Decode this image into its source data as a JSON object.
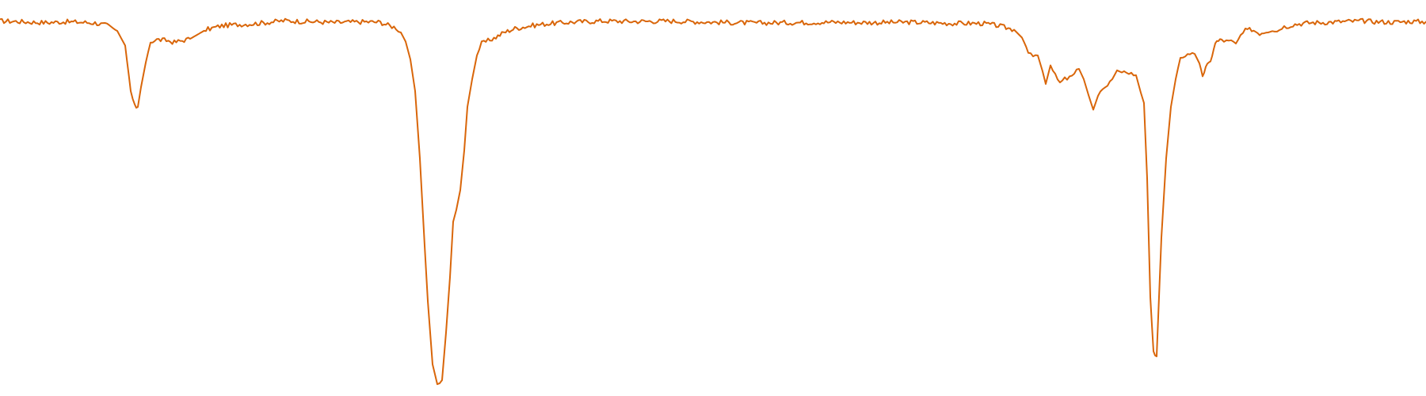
{
  "chart_data": {
    "type": "line",
    "title": "",
    "xlabel": "",
    "ylabel": "",
    "axes_visible": false,
    "grid": false,
    "legend": "none",
    "xlim": [
      0,
      1800
    ],
    "ylim": [
      0,
      1.0
    ],
    "series": [
      {
        "color": "#d9660a",
        "x": [
          0,
          20,
          40,
          60,
          80,
          100,
          120,
          135,
          148,
          158,
          165,
          170,
          174,
          178,
          184,
          190,
          198,
          210,
          220,
          240,
          260,
          280,
          300,
          320,
          340,
          360,
          380,
          400,
          420,
          440,
          460,
          480,
          492,
          500,
          506,
          512,
          518,
          524,
          530,
          536,
          540,
          546,
          552,
          558,
          563,
          568,
          572,
          576,
          581,
          586,
          590,
          596,
          602,
          608,
          616,
          626,
          636,
          650,
          670,
          690,
          720,
          760,
          800,
          850,
          900,
          950,
          1000,
          1050,
          1100,
          1150,
          1200,
          1240,
          1260,
          1280,
          1290,
          1298,
          1304,
          1310,
          1316,
          1320,
          1326,
          1332,
          1338,
          1344,
          1350,
          1356,
          1362,
          1368,
          1374,
          1380,
          1386,
          1392,
          1398,
          1404,
          1410,
          1416,
          1422,
          1428,
          1434,
          1440,
          1444,
          1448,
          1452,
          1456,
          1460,
          1466,
          1472,
          1478,
          1484,
          1490,
          1496,
          1502,
          1508,
          1514,
          1518,
          1522,
          1526,
          1530,
          1534,
          1538,
          1542,
          1548,
          1554,
          1560,
          1566,
          1572,
          1580,
          1590,
          1598,
          1606,
          1612,
          1618,
          1624,
          1632,
          1640,
          1650,
          1660,
          1680,
          1700,
          1720,
          1740,
          1760,
          1780,
          1800
        ],
        "values": [
          0.947,
          0.946,
          0.944,
          0.943,
          0.945,
          0.944,
          0.942,
          0.936,
          0.922,
          0.885,
          0.77,
          0.731,
          0.73,
          0.78,
          0.842,
          0.895,
          0.9,
          0.898,
          0.893,
          0.902,
          0.925,
          0.935,
          0.938,
          0.94,
          0.944,
          0.948,
          0.946,
          0.945,
          0.943,
          0.944,
          0.945,
          0.944,
          0.935,
          0.93,
          0.918,
          0.895,
          0.85,
          0.77,
          0.6,
          0.38,
          0.24,
          0.08,
          0.03,
          0.04,
          0.16,
          0.3,
          0.44,
          0.47,
          0.52,
          0.62,
          0.73,
          0.8,
          0.86,
          0.89,
          0.897,
          0.906,
          0.918,
          0.928,
          0.935,
          0.94,
          0.944,
          0.947,
          0.946,
          0.947,
          0.944,
          0.942,
          0.943,
          0.944,
          0.943,
          0.944,
          0.941,
          0.941,
          0.935,
          0.925,
          0.905,
          0.87,
          0.863,
          0.86,
          0.82,
          0.788,
          0.835,
          0.808,
          0.79,
          0.8,
          0.803,
          0.812,
          0.826,
          0.8,
          0.76,
          0.723,
          0.758,
          0.78,
          0.784,
          0.8,
          0.822,
          0.812,
          0.82,
          0.815,
          0.81,
          0.766,
          0.74,
          0.55,
          0.25,
          0.11,
          0.1,
          0.4,
          0.6,
          0.73,
          0.8,
          0.856,
          0.86,
          0.858,
          0.864,
          0.84,
          0.81,
          0.828,
          0.84,
          0.858,
          0.893,
          0.896,
          0.9,
          0.895,
          0.895,
          0.89,
          0.91,
          0.922,
          0.926,
          0.916,
          0.921,
          0.926,
          0.921,
          0.932,
          0.933,
          0.938,
          0.94,
          0.942,
          0.943,
          0.944,
          0.946,
          0.947,
          0.945,
          0.944,
          0.946,
          0.945
        ]
      }
    ]
  }
}
